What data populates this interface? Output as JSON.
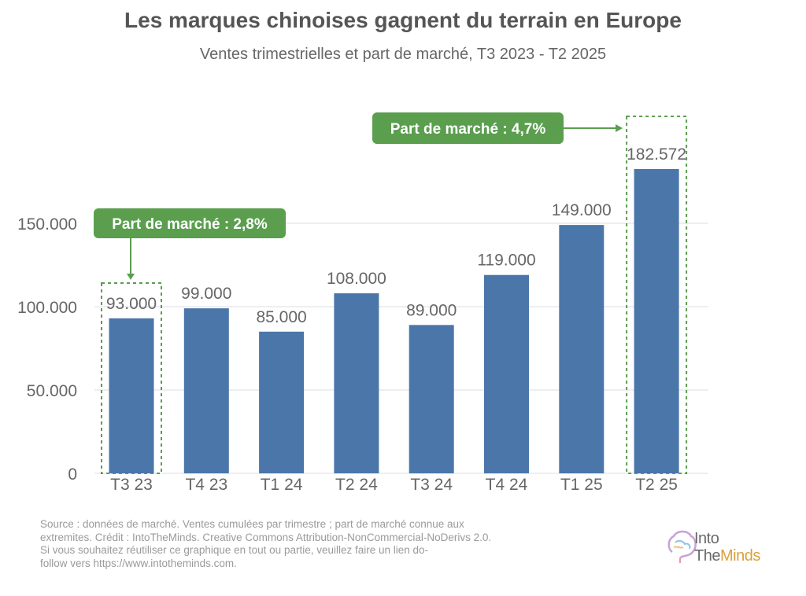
{
  "chart_data": {
    "type": "bar",
    "title": "Les marques chinoises gagnent du terrain en Europe",
    "subtitle": "Ventes trimestrielles et part de marché, T3 2023 - T2 2025",
    "categories": [
      "T3 23",
      "T4 23",
      "T1 24",
      "T2 24",
      "T3 24",
      "T4 24",
      "T1 25",
      "T2 25"
    ],
    "values": [
      93000,
      99000,
      85000,
      108000,
      89000,
      119000,
      149000,
      182572
    ],
    "value_labels": [
      "93.000",
      "99.000",
      "85.000",
      "108.000",
      "89.000",
      "119.000",
      "149.000",
      "182.572"
    ],
    "yticks": [
      0,
      50000,
      100000,
      150000
    ],
    "ytick_labels": [
      "0",
      "50.000",
      "100.000",
      "150.000"
    ],
    "ylim": [
      0,
      200000
    ],
    "grid": true,
    "bar_color": "#4a76aa",
    "annotations": [
      {
        "text": "Part de marché : 2,8%",
        "category": "T3 23"
      },
      {
        "text": "Part de marché : 4,7%",
        "category": "T2 25"
      }
    ],
    "annotation_color": "#5a9e4e"
  },
  "footer": {
    "lines": [
      "Source : données de marché. Ventes cumulées par trimestre ; part de marché connue aux",
      "extremites. Crédit : IntoTheMinds. Creative Commons Attribution-NonCommercial-NoDerivs 2.0.",
      "Si vous souhaitez réutiliser ce graphique en tout ou partie, veuillez faire un lien do-",
      "follow vers https://www.intotheminds.com."
    ]
  },
  "logo": {
    "into": "Into",
    "the": "The",
    "minds": "Minds"
  }
}
